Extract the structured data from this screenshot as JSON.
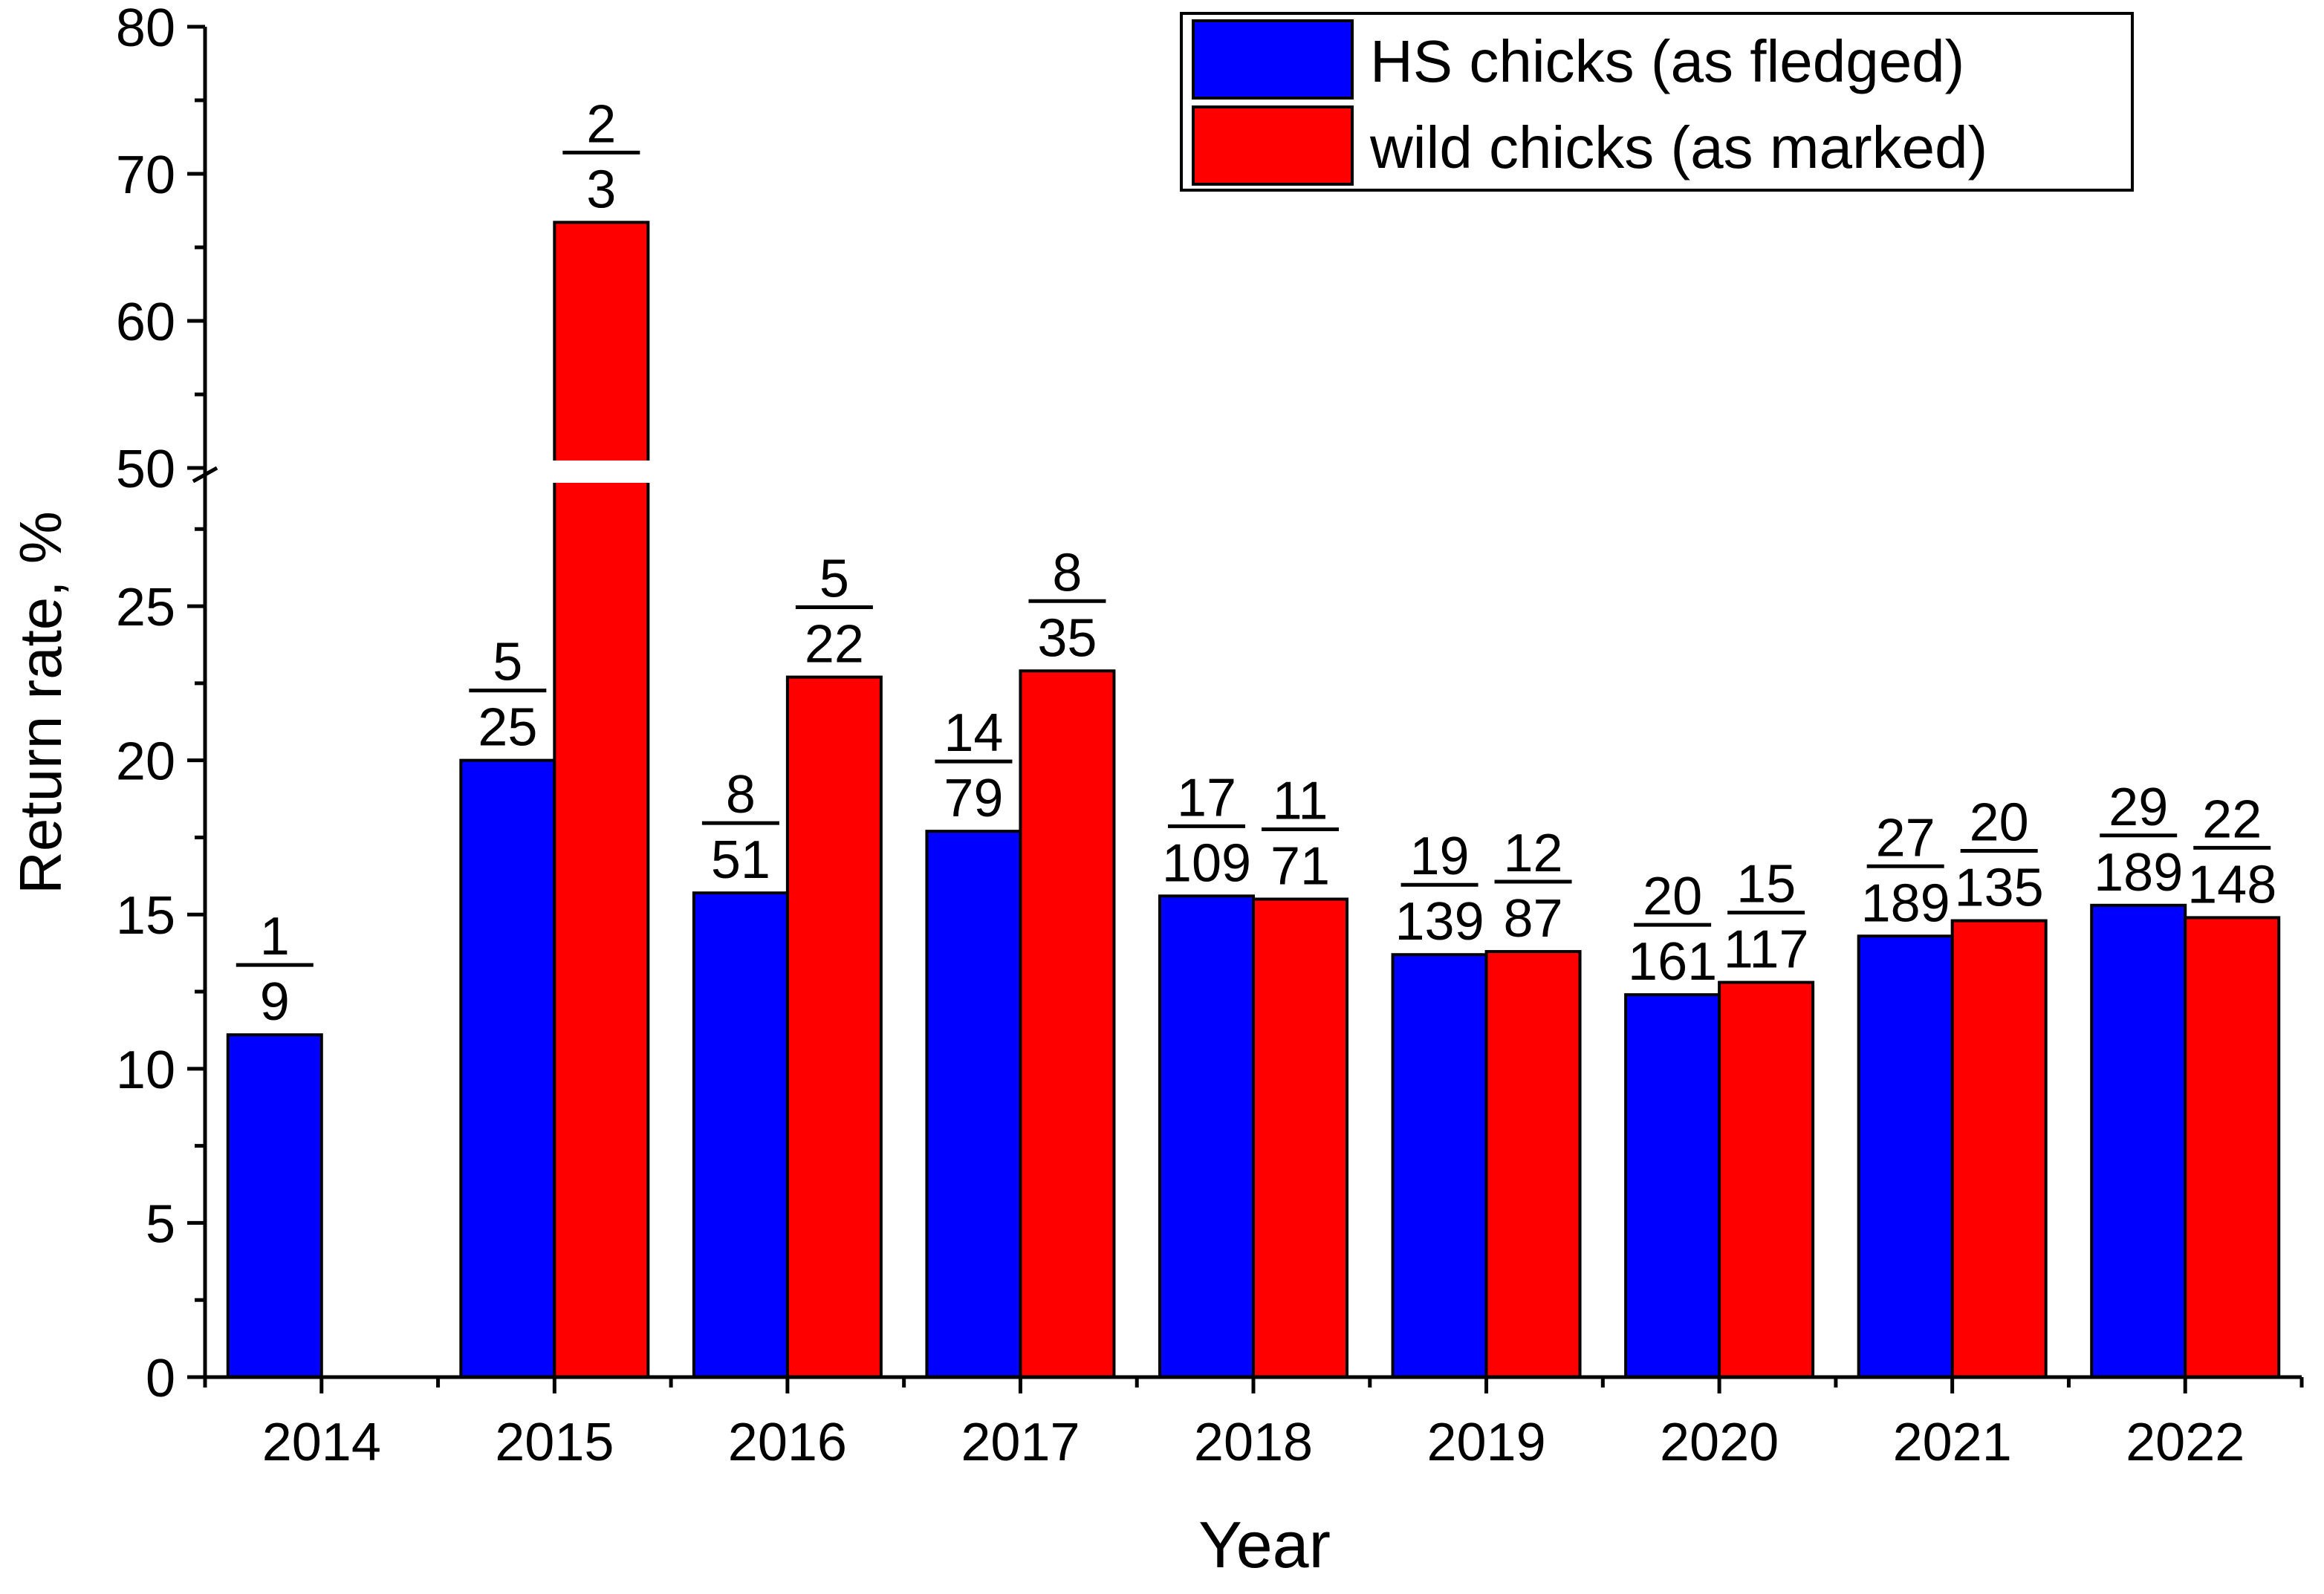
{
  "chart_data": {
    "type": "bar",
    "xlabel": "Year",
    "ylabel": "Return rate, %",
    "categories": [
      "2014",
      "2015",
      "2016",
      "2017",
      "2018",
      "2019",
      "2020",
      "2021",
      "2022"
    ],
    "axis_break": {
      "lower_range": [
        0,
        29
      ],
      "upper_range": [
        50,
        80
      ]
    },
    "y_ticks_lower": [
      0,
      5,
      10,
      15,
      20,
      25
    ],
    "y_ticks_upper": [
      50,
      60,
      70,
      80
    ],
    "colors": {
      "hs": "#0000ff",
      "wild": "#ff0000"
    },
    "series": [
      {
        "name": "HS chicks (as fledged)",
        "values": [
          11.1,
          20.0,
          15.7,
          17.7,
          15.6,
          13.7,
          12.4,
          14.3,
          15.3
        ],
        "numerators": [
          "1",
          "5",
          "8",
          "14",
          "17",
          "19",
          "20",
          "27",
          "29"
        ],
        "denominators": [
          "9",
          "25",
          "51",
          "79",
          "109",
          "139",
          "161",
          "189",
          "189"
        ]
      },
      {
        "name": "wild chicks (as marked)",
        "values": [
          null,
          66.7,
          22.7,
          22.9,
          15.5,
          13.8,
          12.8,
          14.8,
          14.9
        ],
        "numerators": [
          "",
          "2",
          "5",
          "8",
          "11",
          "12",
          "15",
          "20",
          "22"
        ],
        "denominators": [
          "",
          "3",
          "22",
          "35",
          "71",
          "87",
          "117",
          "135",
          "148"
        ]
      }
    ],
    "legend": "top-right"
  }
}
